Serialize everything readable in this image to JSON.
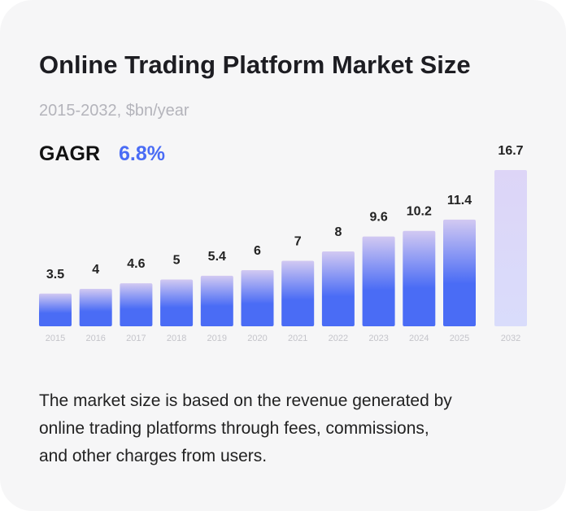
{
  "chart_data": {
    "type": "bar",
    "title": "Online Trading Platform Market Size",
    "subtitle": "2015-2032, $bn/year",
    "cagr_label": "GAGR",
    "cagr_value": "6.8%",
    "categories": [
      "2015",
      "2016",
      "2017",
      "2018",
      "2019",
      "2020",
      "2021",
      "2022",
      "2023",
      "2024",
      "2025",
      "2032"
    ],
    "values": [
      3.5,
      4,
      4.6,
      5,
      5.4,
      6,
      7,
      8,
      9.6,
      10.2,
      11.4,
      16.7
    ],
    "color": "#4a6cf5",
    "forecast_color": "#d9dcfb",
    "description": [
      "The market size is based on the revenue generated by",
      "online trading platforms through fees, commissions,",
      "and other charges from users."
    ]
  }
}
